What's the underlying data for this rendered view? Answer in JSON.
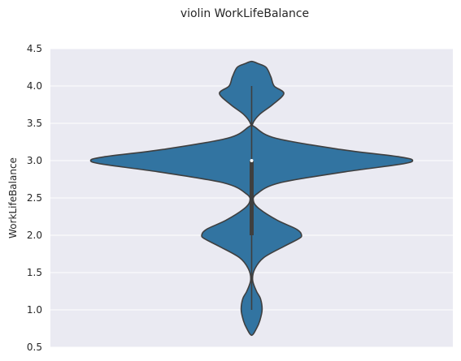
{
  "chart_data": {
    "type": "violin",
    "title": "violin WorkLifeBalance",
    "xlabel": "",
    "ylabel": "WorkLifeBalance",
    "ylim": [
      0.5,
      4.5
    ],
    "yticks": [
      0.5,
      1.0,
      1.5,
      2.0,
      2.5,
      3.0,
      3.5,
      4.0,
      4.5
    ],
    "ytick_labels": [
      "0.5",
      "1.0",
      "1.5",
      "2.0",
      "2.5",
      "3.0",
      "3.5",
      "4.0",
      "4.5"
    ],
    "grid": true,
    "background": "#eaeaf2",
    "fill_color": "#3274a1",
    "edge_color": "#3f3f3f",
    "density": [
      {
        "y": 0.66,
        "w": 0.0
      },
      {
        "y": 0.75,
        "w": 0.03
      },
      {
        "y": 0.85,
        "w": 0.05
      },
      {
        "y": 1.0,
        "w": 0.065
      },
      {
        "y": 1.15,
        "w": 0.055
      },
      {
        "y": 1.25,
        "w": 0.03
      },
      {
        "y": 1.4,
        "w": 0.006
      },
      {
        "y": 1.55,
        "w": 0.02
      },
      {
        "y": 1.7,
        "w": 0.075
      },
      {
        "y": 1.85,
        "w": 0.2
      },
      {
        "y": 1.95,
        "w": 0.29
      },
      {
        "y": 2.0,
        "w": 0.31
      },
      {
        "y": 2.08,
        "w": 0.28
      },
      {
        "y": 2.2,
        "w": 0.16
      },
      {
        "y": 2.35,
        "w": 0.05
      },
      {
        "y": 2.45,
        "w": 0.012
      },
      {
        "y": 2.55,
        "w": 0.03
      },
      {
        "y": 2.7,
        "w": 0.17
      },
      {
        "y": 2.85,
        "w": 0.58
      },
      {
        "y": 2.95,
        "w": 0.92
      },
      {
        "y": 3.0,
        "w": 1.0
      },
      {
        "y": 3.05,
        "w": 0.92
      },
      {
        "y": 3.15,
        "w": 0.55
      },
      {
        "y": 3.3,
        "w": 0.15
      },
      {
        "y": 3.45,
        "w": 0.02
      },
      {
        "y": 3.5,
        "w": 0.008
      },
      {
        "y": 3.62,
        "w": 0.05
      },
      {
        "y": 3.75,
        "w": 0.13
      },
      {
        "y": 3.9,
        "w": 0.2
      },
      {
        "y": 4.0,
        "w": 0.14
      },
      {
        "y": 4.12,
        "w": 0.12
      },
      {
        "y": 4.25,
        "w": 0.09
      },
      {
        "y": 4.3,
        "w": 0.04
      },
      {
        "y": 4.33,
        "w": 0.0
      }
    ],
    "box": {
      "min": 1.0,
      "q1": 2.0,
      "median": 3.0,
      "q3": 3.0,
      "max": 4.0
    }
  }
}
